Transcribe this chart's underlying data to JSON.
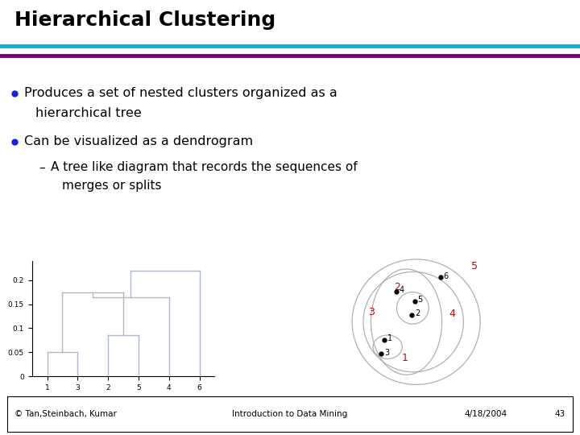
{
  "title": "Hierarchical Clustering",
  "title_color": "#000000",
  "title_fontsize": 18,
  "bg_color": "#ffffff",
  "header_line1_color": "#00b8d4",
  "header_line2_color": "#7b0080",
  "bullet_color": "#1a1aff",
  "footer_left": "© Tan,Steinbach, Kumar",
  "footer_center": "Introduction to Data Mining",
  "footer_right": "4/18/2004",
  "footer_page": "43",
  "dendrogram_color": "#b0b8d0",
  "dendrogram_labels": [
    "1",
    "3",
    "2",
    "5",
    "4",
    "6"
  ],
  "cluster_label_color": "#cc0000",
  "point_color": "#000000",
  "circle_color": "#b0b0b0"
}
